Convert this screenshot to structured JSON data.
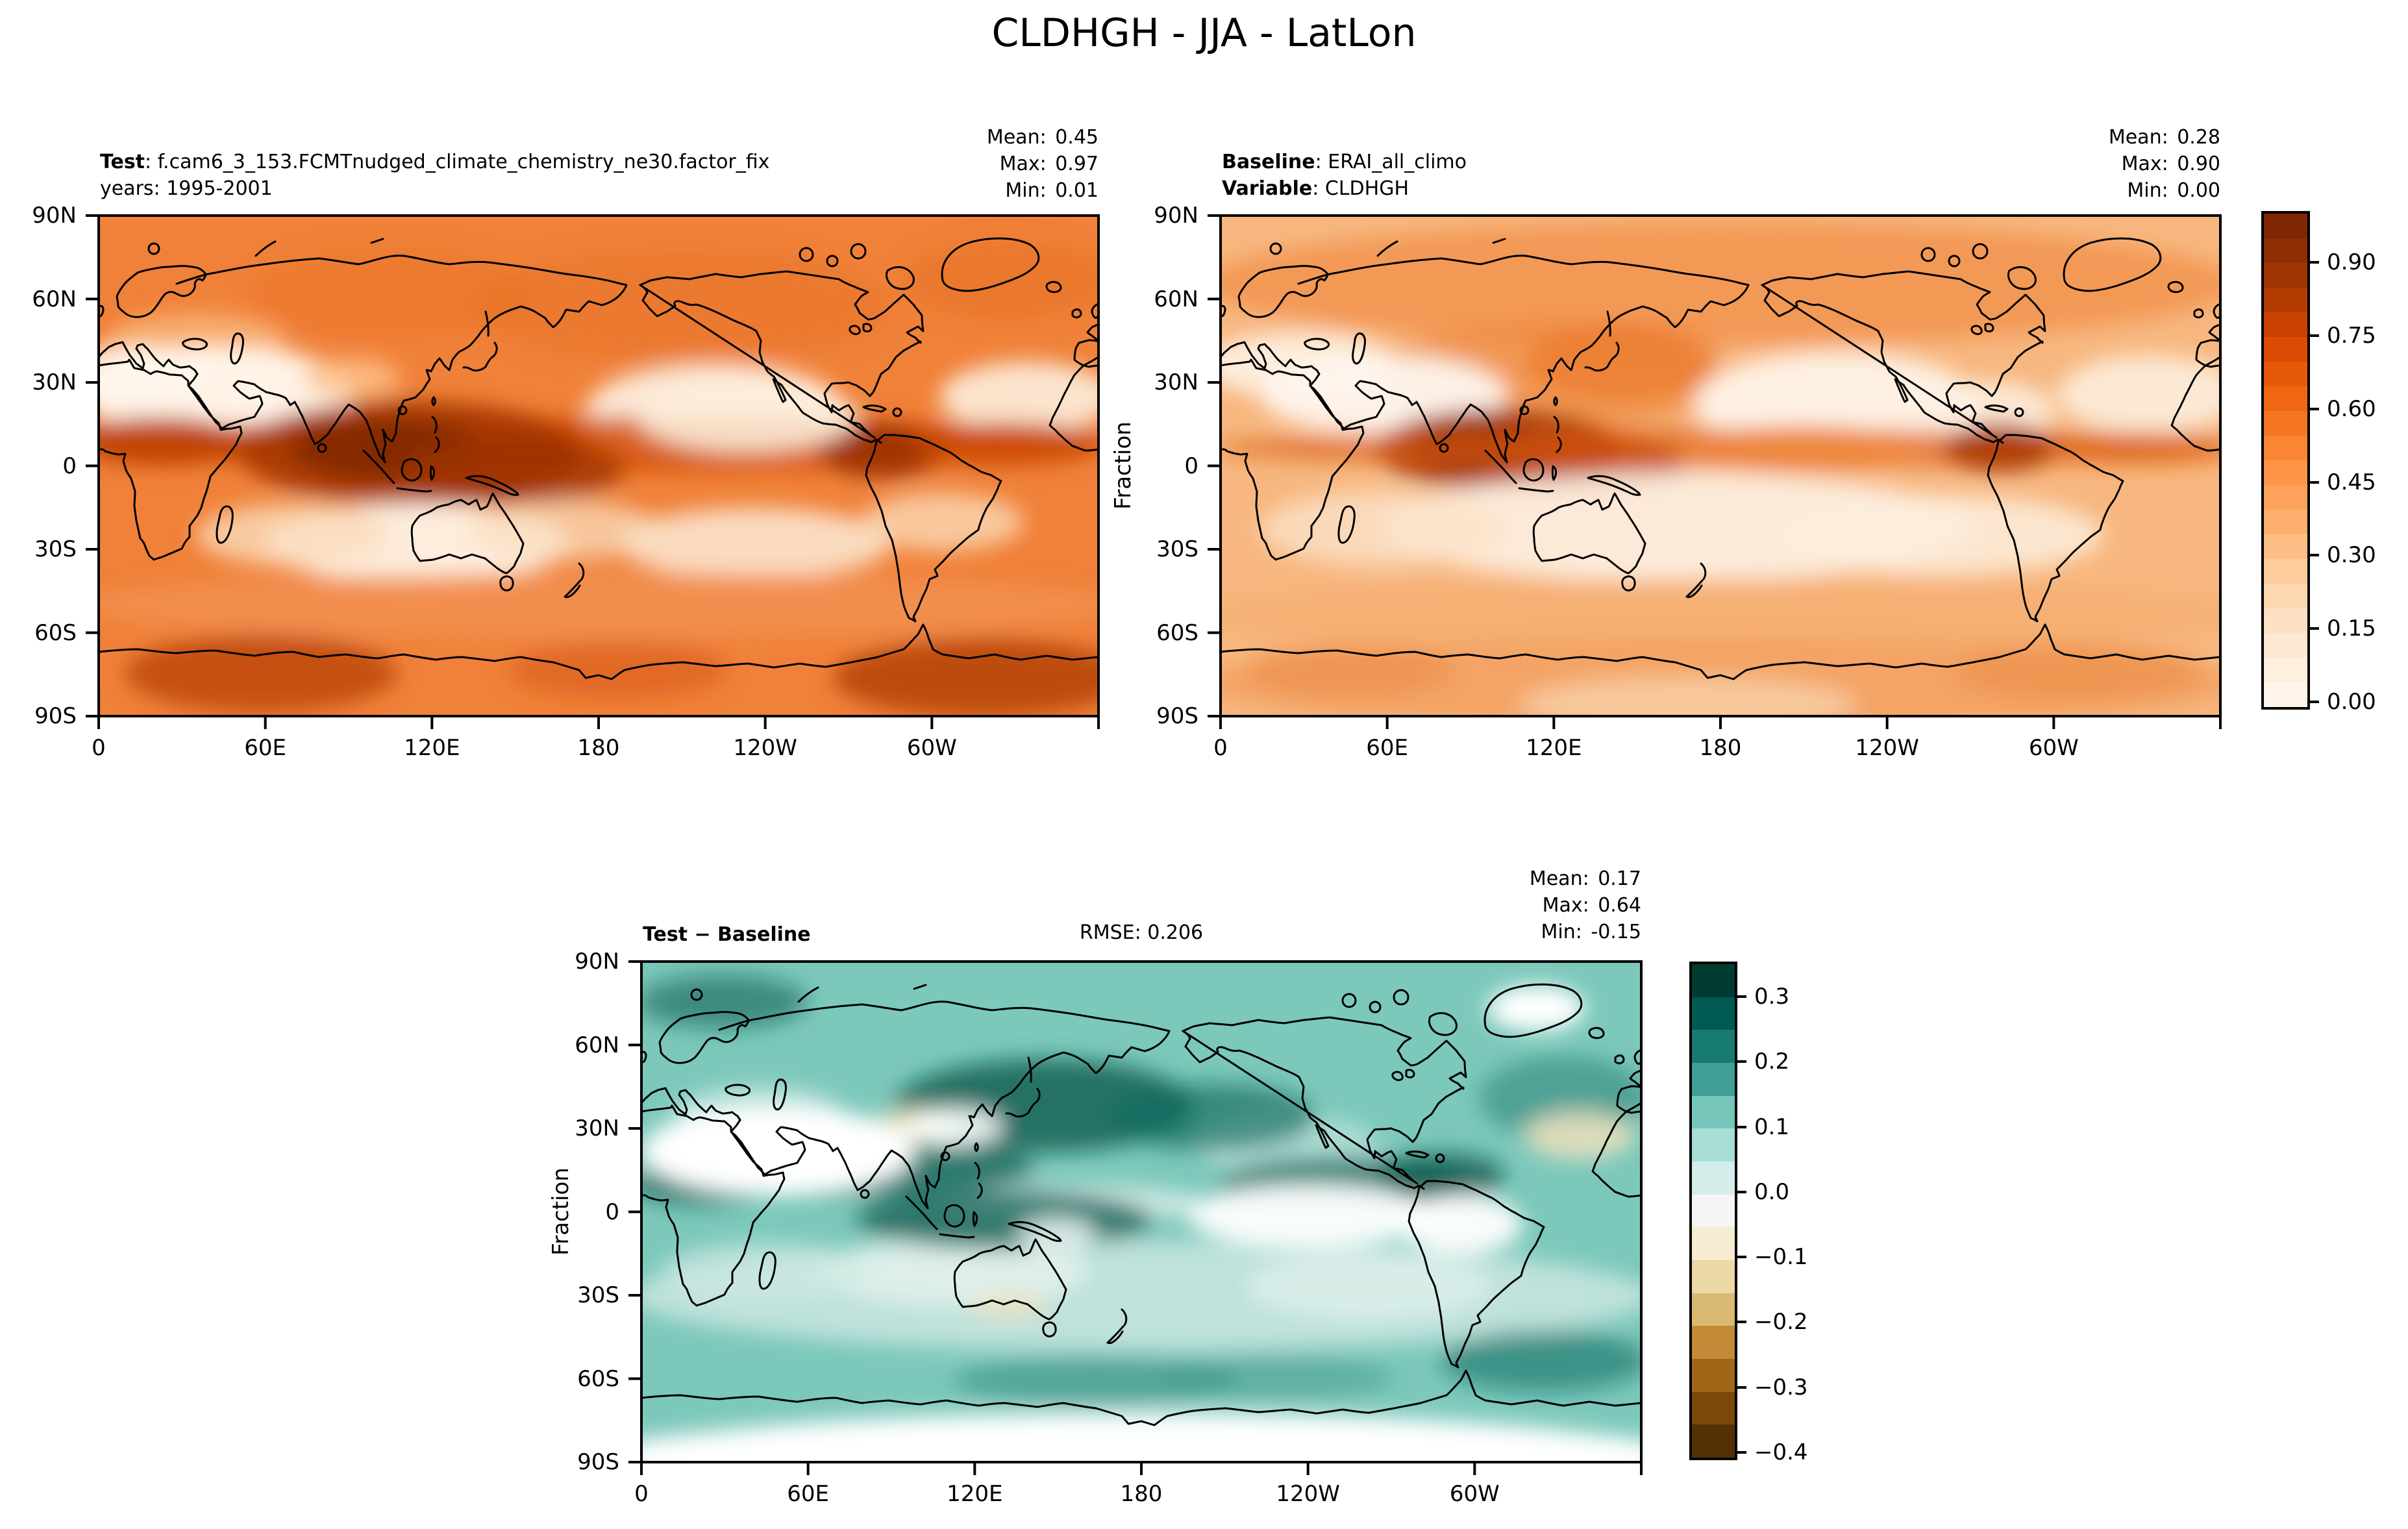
{
  "title": "CLDHGH - JJA - LatLon",
  "chart_data": {
    "type": "heatmap",
    "title": "CLDHGH - JJA - LatLon",
    "variable": "CLDHGH",
    "season": "JJA",
    "projection": "LatLon",
    "units": "Fraction",
    "stats_labels": {
      "mean": "Mean:",
      "max": "Max:",
      "min": "Min:"
    },
    "panels": [
      {
        "name": "test",
        "title_bold": "Test",
        "title_rest": ": f.cam6_3_153.FCMTnudged_climate_chemistry_ne30.factor_fix",
        "subtitle_bold": "",
        "subtitle_rest": "years: 1995-2001",
        "center_label": "",
        "ylabel": "",
        "stats": {
          "mean": "0.45",
          "max": "0.97",
          "min": "0.01"
        }
      },
      {
        "name": "baseline",
        "title_bold": "Baseline",
        "title_rest": ": ERAI_all_climo",
        "subtitle_bold": "Variable",
        "subtitle_rest": ": CLDHGH",
        "center_label": "",
        "ylabel": "Fraction",
        "stats": {
          "mean": "0.28",
          "max": "0.90",
          "min": "0.00"
        }
      },
      {
        "name": "diff",
        "title_bold": "Test − Baseline",
        "title_rest": "",
        "subtitle_bold": "",
        "subtitle_rest": "",
        "center_label": "RMSE: 0.206",
        "ylabel": "Fraction",
        "stats": {
          "mean": "0.17",
          "max": "0.64",
          "min": "-0.15"
        }
      }
    ],
    "axes": {
      "lat_tick_labels": [
        "90N",
        "60N",
        "30N",
        "0",
        "30S",
        "60S",
        "90S"
      ],
      "lon_tick_labels": [
        "0",
        "60E",
        "120E",
        "180",
        "120W",
        "60W"
      ]
    },
    "colorbars": [
      {
        "id": "fraction",
        "vmin": 0.0,
        "vmax": 1.0,
        "tick_values": [
          0.9,
          0.75,
          0.6,
          0.45,
          0.3,
          0.15,
          0.0
        ],
        "tick_labels": [
          "0.90",
          "0.75",
          "0.60",
          "0.45",
          "0.30",
          "0.15",
          "0.00"
        ],
        "colors_top_to_bottom": [
          "#7f2704",
          "#8f2d04",
          "#a03403",
          "#b33b02",
          "#c94202",
          "#dc4b03",
          "#e6590a",
          "#f06712",
          "#f57622",
          "#fa8533",
          "#fd9446",
          "#fda25a",
          "#fdb06e",
          "#fdbe85",
          "#fdcc9c",
          "#fdd7b0",
          "#fee0c2",
          "#fee8d3",
          "#ffefdf",
          "#fff5eb"
        ]
      },
      {
        "id": "diff",
        "vmin": -0.4,
        "vmax": 0.35,
        "tick_values": [
          0.3,
          0.2,
          0.1,
          0.0,
          -0.1,
          -0.2,
          -0.3,
          -0.4
        ],
        "tick_labels": [
          "0.3",
          "0.2",
          "0.1",
          "0.0",
          "−0.1",
          "−0.2",
          "−0.3",
          "−0.4"
        ],
        "colors_top_to_bottom": [
          "#003c30",
          "#015a51",
          "#177b73",
          "#409f96",
          "#75c5ba",
          "#a9ded6",
          "#d4edea",
          "#f5f5f5",
          "#f6ecd1",
          "#ecd8a5",
          "#dab972",
          "#c48a38",
          "#a26619",
          "#7c4809",
          "#543005"
        ]
      }
    ]
  }
}
